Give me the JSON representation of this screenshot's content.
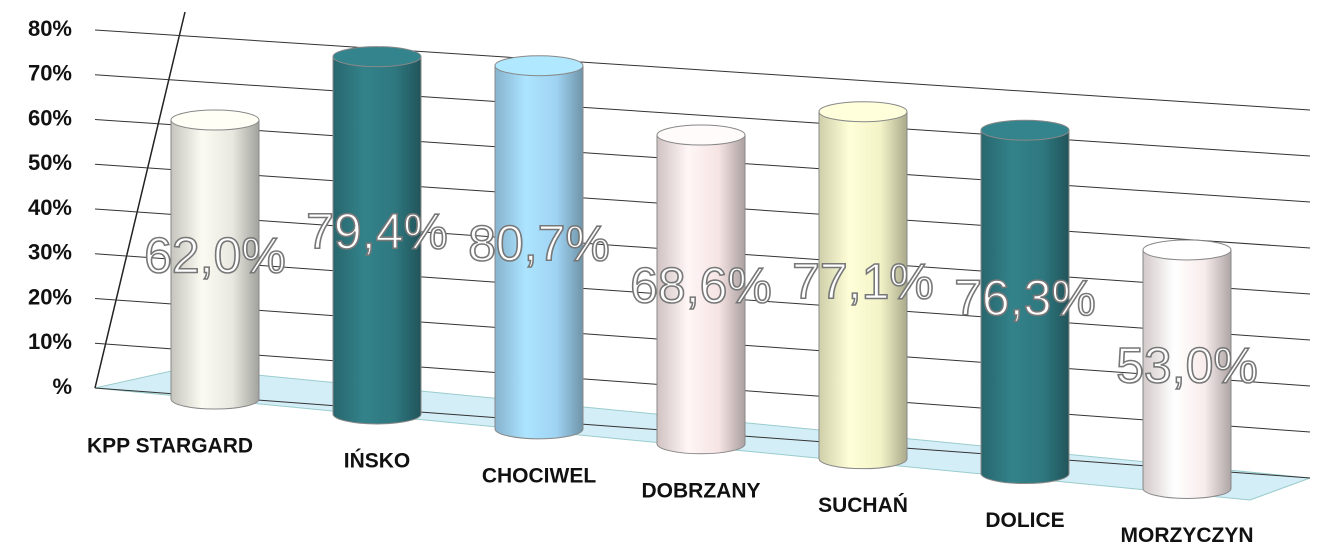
{
  "chart_data": {
    "type": "bar",
    "categories": [
      "KPP STARGARD",
      "IŃSKO",
      "CHOCIWEL",
      "DOBRZANY",
      "SUCHAŃ",
      "DOLICE",
      "MORZYCZYN"
    ],
    "values": [
      62.0,
      79.4,
      80.7,
      68.6,
      77.1,
      76.3,
      53.0
    ],
    "value_labels": [
      "62,0%",
      "79,4%",
      "80,7%",
      "68,6%",
      "77,1%",
      "76,3%",
      "53,0%"
    ],
    "colors": [
      "#e8e8e0",
      "#2f7880",
      "#9fd3f2",
      "#f6e4e4",
      "#f3f3c8",
      "#2f7880",
      "#f8ecec"
    ],
    "ylim": [
      0,
      80
    ],
    "yticks": [
      {
        "value": 0,
        "label": "%"
      },
      {
        "value": 10,
        "label": "10%"
      },
      {
        "value": 20,
        "label": "20%"
      },
      {
        "value": 30,
        "label": "30%"
      },
      {
        "value": 40,
        "label": "40%"
      },
      {
        "value": 50,
        "label": "50%"
      },
      {
        "value": 60,
        "label": "60%"
      },
      {
        "value": 70,
        "label": "70%"
      },
      {
        "value": 80,
        "label": "80%"
      }
    ],
    "grid": true
  }
}
